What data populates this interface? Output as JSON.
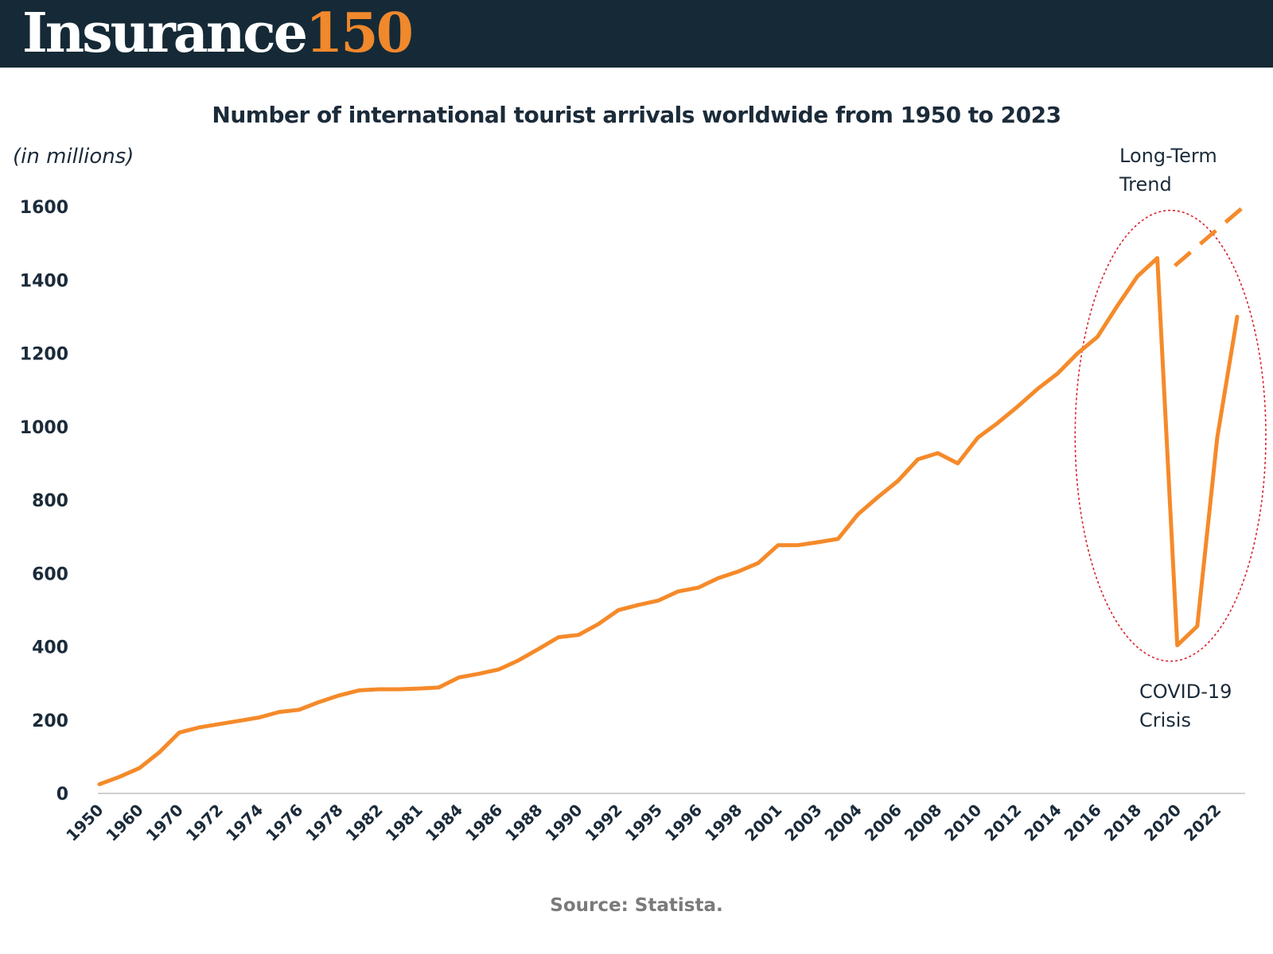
{
  "header": {
    "logo_word": "Insurance",
    "logo_number": "150",
    "bar_color": "#152a36",
    "accent_color": "#f0882c"
  },
  "chart_data": {
    "type": "line",
    "title": "Number of international tourist arrivals worldwide from 1950 to 2023",
    "ylabel": "(in millions)",
    "xlabel": "",
    "ylim": [
      0,
      1600
    ],
    "y_ticks": [
      0,
      200,
      400,
      600,
      800,
      1000,
      1200,
      1400,
      1600
    ],
    "grid": false,
    "x_tick_labels": [
      "1950",
      "1960",
      "1970",
      "1972",
      "1974",
      "1976",
      "1978",
      "1982",
      "1981",
      "1984",
      "1986",
      "1988",
      "1990",
      "1992",
      "1995",
      "1996",
      "1998",
      "2001",
      "2003",
      "2004",
      "2006",
      "2008",
      "2010",
      "2012",
      "2014",
      "2016",
      "2018",
      "2020",
      "2022"
    ],
    "series": [
      {
        "color": "#f58a2a",
        "values": [
          25,
          45,
          69,
          112,
          166,
          180,
          189,
          198,
          207,
          222,
          228,
          249,
          267,
          281,
          284,
          284,
          286,
          289,
          316,
          326,
          338,
          363,
          394,
          426,
          432,
          462,
          500,
          514,
          526,
          551,
          561,
          587,
          605,
          628,
          677,
          677,
          685,
          694,
          761,
          808,
          852,
          911,
          928,
          900,
          970,
          1010,
          1055,
          1103,
          1145,
          1200,
          1245,
          1330,
          1410,
          1460,
          404,
          456,
          970,
          1300
        ]
      }
    ],
    "long_term_trend": {
      "values": [
        1465,
        1635
      ],
      "style": "dashed",
      "color": "#f58a2a"
    },
    "annotations": [
      {
        "text": "Long-Term\nTrend"
      },
      {
        "text": "COVID-19\nCrisis"
      }
    ],
    "highlight_ellipse_color": "#d9232e",
    "source": "Source: Statista."
  }
}
